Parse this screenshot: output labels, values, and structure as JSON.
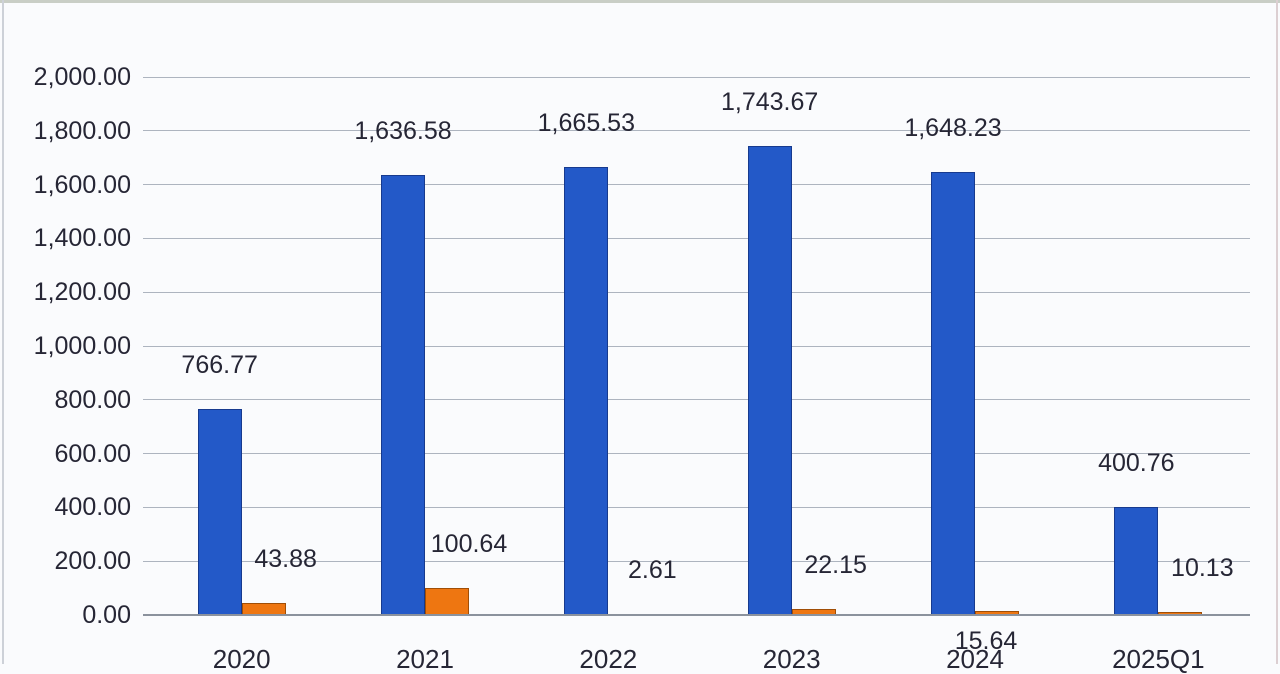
{
  "chart_data": {
    "type": "bar",
    "title": "",
    "xlabel": "",
    "ylabel": "",
    "categories": [
      "2020",
      "2021",
      "2022",
      "2023",
      "2024",
      "2025Q1"
    ],
    "series": [
      {
        "name": "blue-series",
        "color": "#2359c8",
        "values": [
          766.77,
          1636.58,
          1665.53,
          1743.67,
          1648.23,
          400.76
        ],
        "labels": [
          "766.77",
          "1,636.58",
          "1,665.53",
          "1,743.67",
          "1,648.23",
          "400.76"
        ]
      },
      {
        "name": "orange-series",
        "color": "#ee7611",
        "values": [
          43.88,
          100.64,
          2.61,
          22.15,
          15.64,
          10.13
        ],
        "labels": [
          "43.88",
          "100.64",
          "2.61",
          "22.15",
          "15.64",
          "10.13"
        ]
      }
    ],
    "ylim": [
      0,
      2000
    ],
    "ytick_interval": 200,
    "yticks": [
      "2,000.00",
      "1,800.00",
      "1,600.00",
      "1,400.00",
      "1,200.00",
      "1,000.00",
      "800.00",
      "600.00",
      "400.00",
      "200.00",
      "0.00"
    ],
    "grid": true,
    "legend": "none",
    "gridline_color": "#adb4bf",
    "axis_color": "#8b929d",
    "text_color": "#262635"
  }
}
